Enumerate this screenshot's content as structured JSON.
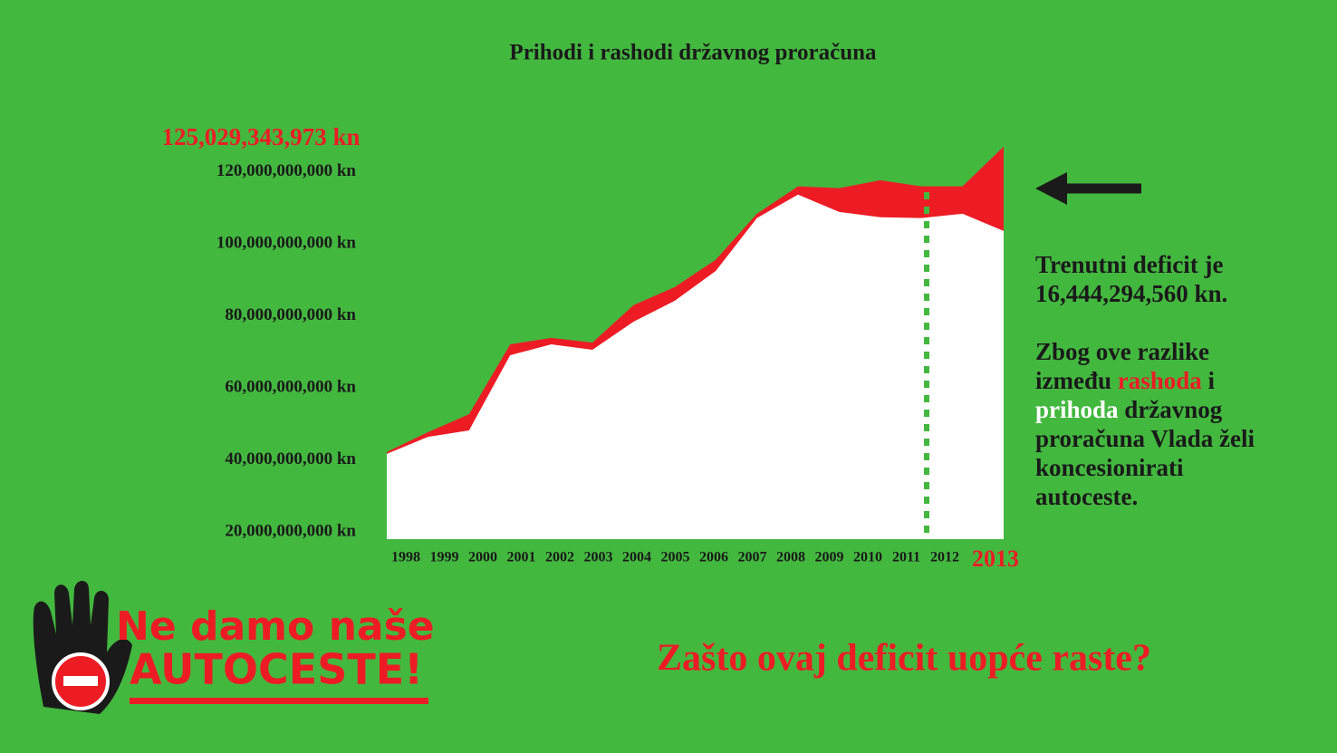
{
  "chart_data": {
    "type": "area",
    "title": "Prihodi i rashodi državnog proračuna",
    "categories": [
      "1998",
      "1999",
      "2000",
      "2001",
      "2002",
      "2003",
      "2004",
      "2005",
      "2006",
      "2007",
      "2008",
      "2009",
      "2010",
      "2011",
      "2012",
      "2013"
    ],
    "series": [
      {
        "color": "#ed1c24",
        "values": [
          42200000000,
          47700000000,
          52700000000,
          72100000000,
          73900000000,
          72600000000,
          83000000000,
          88000000000,
          95600000000,
          108400000000,
          116000000000,
          115500000000,
          117700000000,
          116000000000,
          116000000000,
          127000000000
        ]
      },
      {
        "color": "#ffffff",
        "values": [
          41700000000,
          46400000000,
          48200000000,
          69100000000,
          72100000000,
          70600000000,
          78400000000,
          84200000000,
          92500000000,
          107200000000,
          113700000000,
          108900000000,
          107400000000,
          107200000000,
          108400000000,
          103600000000
        ]
      }
    ],
    "ylim": [
      18000000000,
      130000000000
    ],
    "yticks": [
      {
        "value": 20000000000,
        "label": "20,000,000,000 kn"
      },
      {
        "value": 40000000000,
        "label": "40,000,000,000 kn"
      },
      {
        "value": 60000000000,
        "label": "60,000,000,000 kn"
      },
      {
        "value": 80000000000,
        "label": "80,000,000,000 kn"
      },
      {
        "value": 100000000000,
        "label": "100,000,000,000 kn"
      },
      {
        "value": 120000000000,
        "label": "120,000,000,000 kn"
      }
    ],
    "top_label": "125,029,343,973 kn",
    "deficit_text": [
      "Trenutni deficit je",
      "16,444,294,560 kn."
    ],
    "explanation": [
      "Zbog ove razlike između ",
      "rashoda",
      " i ",
      "prihoda",
      " državnog proračuna Vlada želi koncesionirati autoceste."
    ],
    "logo": [
      "Ne damo naše",
      "AUTOCESTE!"
    ],
    "question": "Zašto ovaj deficit uopće raste?"
  }
}
